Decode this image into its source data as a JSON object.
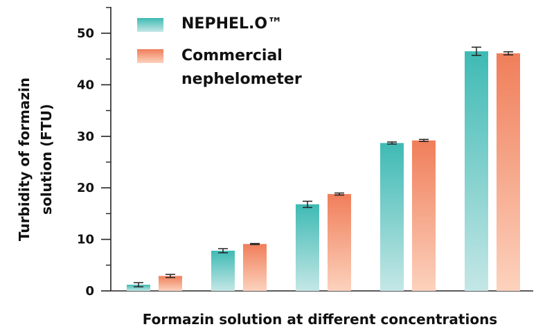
{
  "chart_data": {
    "type": "bar",
    "title": "",
    "xlabel": "Formazin solution at different concentrations",
    "ylabel_lines": [
      "Turbidity of formazin",
      "solution (FTU)"
    ],
    "ylim": [
      0,
      55
    ],
    "yticks": [
      0,
      10,
      20,
      30,
      40,
      50
    ],
    "grid": false,
    "legend_position": "top-left",
    "categories": [
      "",
      "",
      "",
      "",
      ""
    ],
    "series": [
      {
        "name": "NEPHEL.O™",
        "color_top": "#3fbab4",
        "color_bottom": "#c4e7e6",
        "values": [
          1.2,
          7.8,
          16.8,
          28.7,
          46.5
        ],
        "errors": [
          0.4,
          0.4,
          0.6,
          0.2,
          0.8
        ]
      },
      {
        "name": "Commercial nephelometer",
        "name_lines": [
          "Commercial",
          "nephelometer"
        ],
        "color_top": "#f07e5a",
        "color_bottom": "#fcd2bd",
        "values": [
          2.9,
          9.1,
          18.8,
          29.2,
          46.1
        ],
        "errors": [
          0.3,
          0.1,
          0.2,
          0.2,
          0.3
        ]
      }
    ]
  }
}
